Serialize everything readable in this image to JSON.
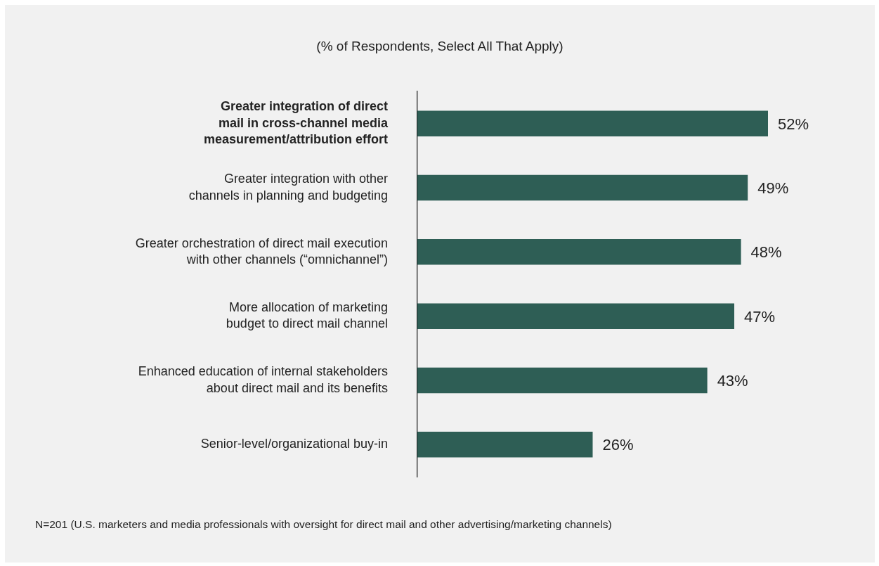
{
  "chart_data": {
    "type": "bar",
    "orientation": "horizontal",
    "title": "(% of Respondents, Select All That Apply)",
    "categories": [
      "Greater integration of direct\nmail in cross-channel media\nmeasurement/attribution effort",
      "Greater integration with other\nchannels in planning and budgeting",
      "Greater orchestration of direct mail execution\nwith other channels (“omnichannel”)",
      "More allocation of marketing\nbudget to direct mail channel",
      "Enhanced education of internal stakeholders\nabout direct mail and its benefits",
      "Senior-level/organizational buy-in"
    ],
    "values": [
      52,
      49,
      48,
      47,
      43,
      26
    ],
    "value_labels": [
      "52%",
      "49%",
      "48%",
      "47%",
      "43%",
      "26%"
    ],
    "color": "#2e5e55",
    "tick_labels": "y",
    "annotations": [
      "N=201 (U.S. marketers and media professionals with oversight for direct mail and other advertising/marketing channels)"
    ]
  }
}
